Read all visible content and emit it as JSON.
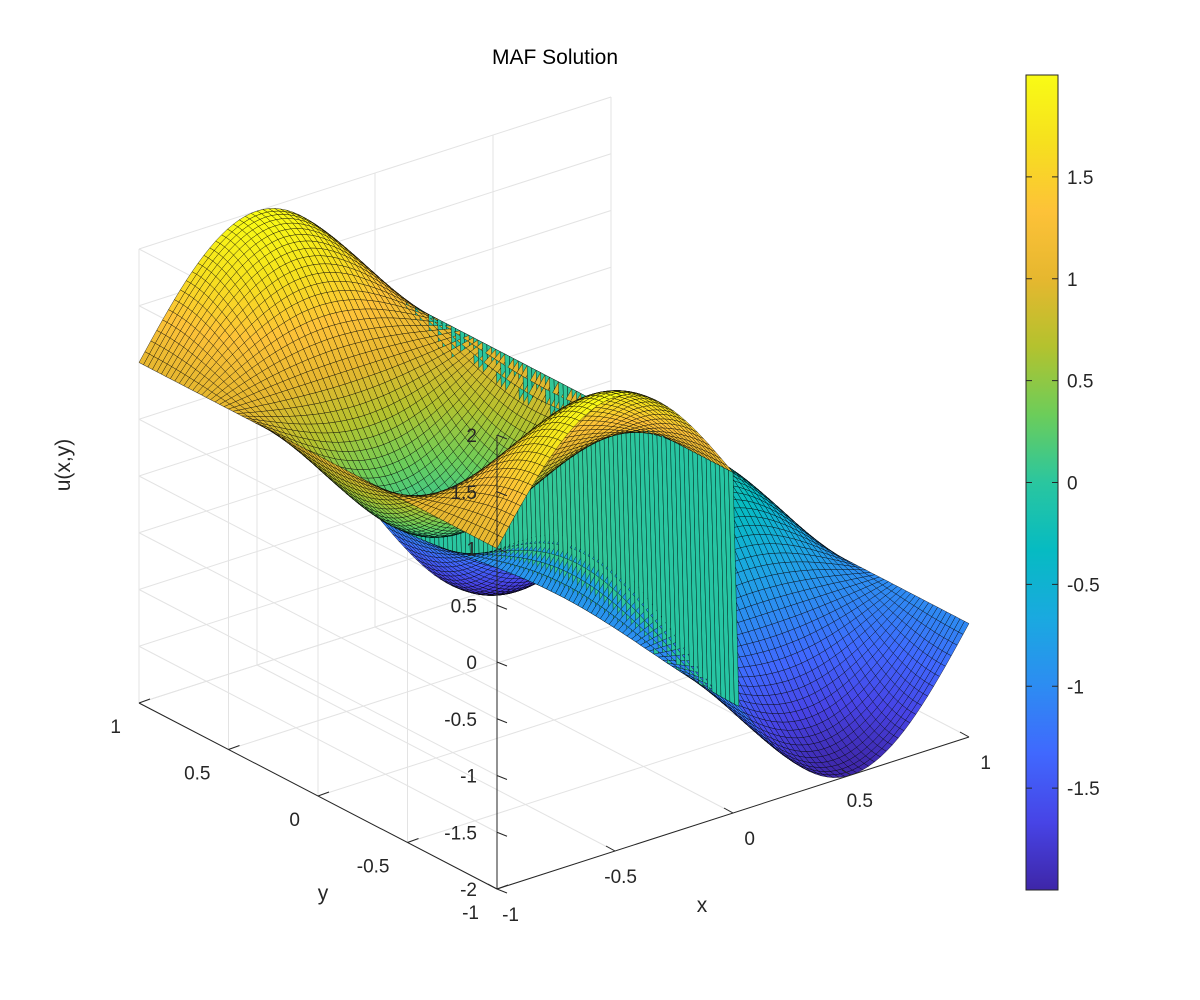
{
  "chart_data": {
    "type": "surface",
    "title": "MAF Solution",
    "xlabel": "x",
    "ylabel": "y",
    "zlabel": "u(x,y)",
    "xlim": [
      -1,
      1
    ],
    "ylim": [
      -1,
      1
    ],
    "zlim": [
      -2,
      2
    ],
    "x_ticks": [
      -1,
      -0.5,
      0,
      0.5,
      1
    ],
    "x_tick_labels": [
      "-1",
      "-0.5",
      "0",
      "0.5",
      "1"
    ],
    "y_ticks": [
      -1,
      -0.5,
      0,
      0.5,
      1
    ],
    "y_tick_labels": [
      "-1",
      "-0.5",
      "0",
      "0.5",
      "1"
    ],
    "z_ticks": [
      -2,
      -1.5,
      -1,
      -0.5,
      0,
      0.5,
      1,
      1.5,
      2
    ],
    "z_tick_labels": [
      "-2",
      "-1.5",
      "-1",
      "-0.5",
      "0",
      "0.5",
      "1",
      "1.5",
      "2"
    ],
    "grid": true,
    "colormap": "parula",
    "colormap_stops": [
      "#3e26a8",
      "#4744e6",
      "#4068fe",
      "#2d8cf2",
      "#1aa9e0",
      "#06bbc2",
      "#2ac69f",
      "#6ccd5a",
      "#b4c22e",
      "#e6b72f",
      "#fdc238",
      "#f6e01e",
      "#f9fb15"
    ],
    "colorbar": {
      "limits": [
        -2,
        2
      ],
      "ticks": [
        -1.5,
        -1,
        -0.5,
        0,
        0.5,
        1,
        1.5
      ],
      "tick_labels": [
        "-1.5",
        "-1",
        "-0.5",
        "0",
        "0.5",
        "1",
        "1.5"
      ]
    },
    "edge_color": "#000000",
    "grid_resolution": 80,
    "surface_description": "u(x,y) = sin(pi*x)*cos(pi*y) + 1 for x<=0 ; sin(pi*x)*cos(pi*y) - 1 for x>0",
    "sample_values": [
      {
        "x": -1,
        "y": 0,
        "u": 1
      },
      {
        "x": -0.5,
        "y": 0,
        "u": 0
      },
      {
        "x": -0.5,
        "y": 1,
        "u": 2
      },
      {
        "x": -0.5,
        "y": -1,
        "u": 2
      },
      {
        "x": 0,
        "y": 0,
        "u": 1
      },
      {
        "x": 0.5,
        "y": 0,
        "u": 0
      },
      {
        "x": 0.5,
        "y": 1,
        "u": -2
      },
      {
        "x": 1,
        "y": 0,
        "u": -1
      }
    ]
  }
}
